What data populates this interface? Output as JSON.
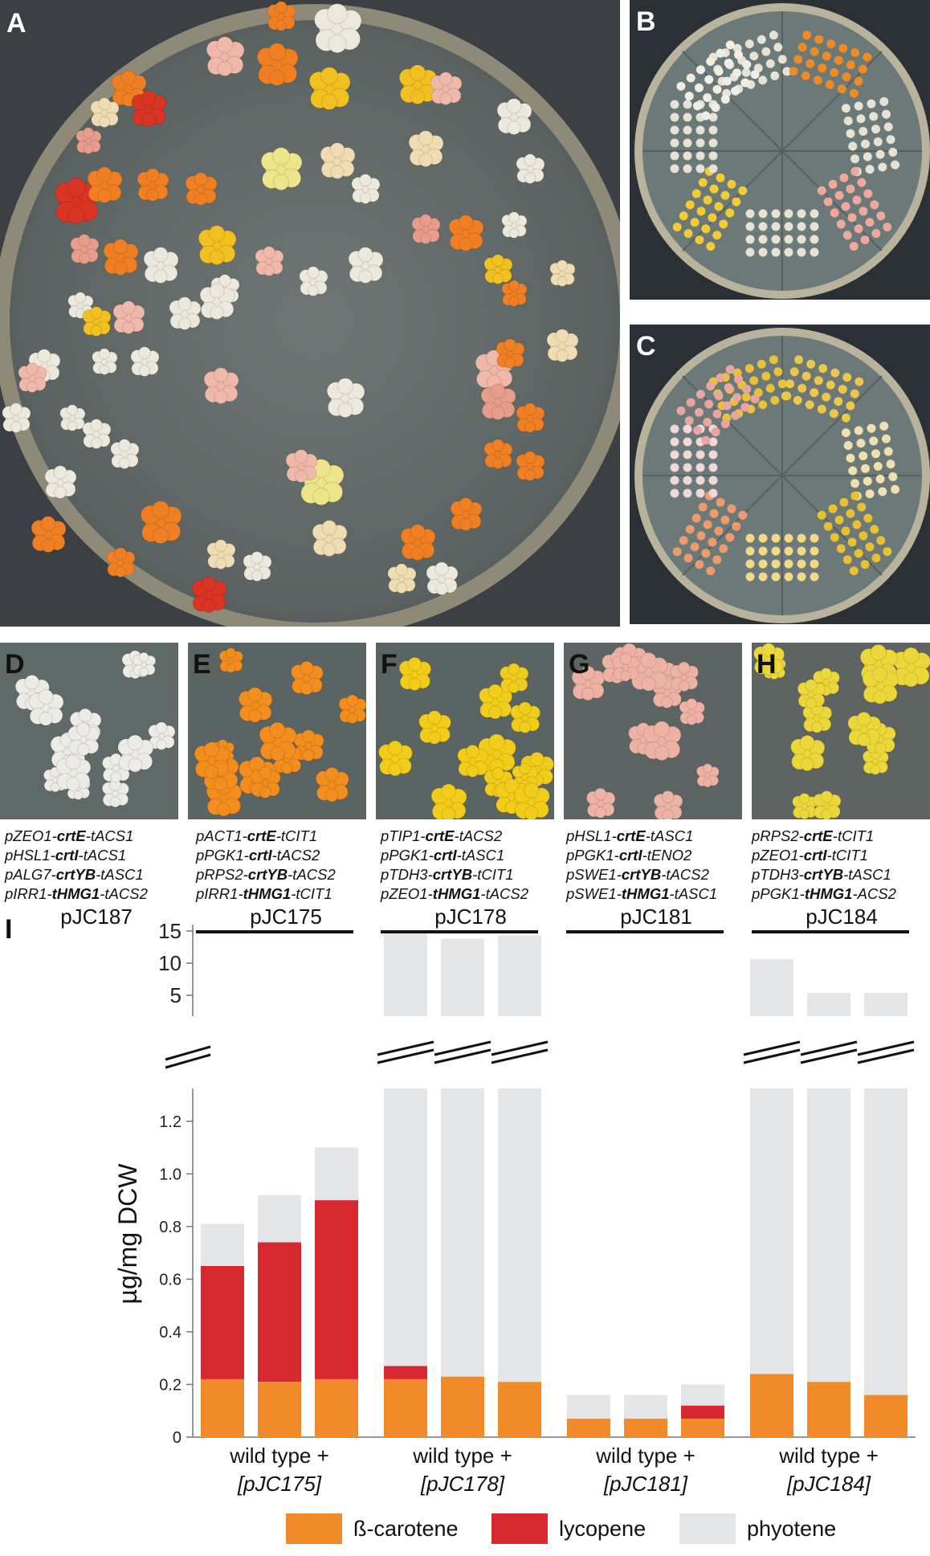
{
  "panels": {
    "A": "A",
    "B": "B",
    "C": "C",
    "D": "D",
    "E": "E",
    "F": "F",
    "G": "G",
    "H": "H",
    "I": "I"
  },
  "constructs": [
    {
      "letter": "D",
      "name": "pJC187",
      "underlined": false,
      "lines": [
        {
          "pre": "pZEO1-",
          "gene": "crtE",
          "post": "-tACS1"
        },
        {
          "pre": "pHSL1-",
          "gene": "crtI",
          "post": "-tACS1"
        },
        {
          "pre": "pALG7-",
          "gene": "crtYB",
          "post": "-tASC1"
        },
        {
          "pre": "pIRR1-",
          "gene": "tHMG1",
          "post": "-tACS2"
        }
      ]
    },
    {
      "letter": "E",
      "name": "pJC175",
      "underlined": true,
      "lines": [
        {
          "pre": "pACT1-",
          "gene": "crtE",
          "post": "-tCIT1"
        },
        {
          "pre": "pPGK1-",
          "gene": "crtI",
          "post": "-tACS2"
        },
        {
          "pre": "pRPS2-",
          "gene": "crtYB",
          "post": "-tACS2"
        },
        {
          "pre": "pIRR1-",
          "gene": "tHMG1",
          "post": "-tCIT1"
        }
      ]
    },
    {
      "letter": "F",
      "name": "pJC178",
      "underlined": true,
      "lines": [
        {
          "pre": "pTIP1-",
          "gene": "crtE",
          "post": "-tACS2"
        },
        {
          "pre": "pPGK1-",
          "gene": "crtI",
          "post": "-tASC1"
        },
        {
          "pre": "pTDH3-",
          "gene": "crtYB",
          "post": "-tCIT1"
        },
        {
          "pre": "pZEO1-",
          "gene": "tHMG1",
          "post": "-tACS2"
        }
      ]
    },
    {
      "letter": "G",
      "name": "pJC181",
      "underlined": true,
      "lines": [
        {
          "pre": "pHSL1-",
          "gene": "crtE",
          "post": "-tASC1"
        },
        {
          "pre": "pPGK1-",
          "gene": "crtI",
          "post": "-tENO2"
        },
        {
          "pre": "pSWE1-",
          "gene": "crtYB",
          "post": "-tACS2"
        },
        {
          "pre": "pSWE1-",
          "gene": "tHMG1",
          "post": "-tASC1"
        }
      ]
    },
    {
      "letter": "H",
      "name": "pJC184",
      "underlined": true,
      "lines": [
        {
          "pre": "pRPS2-",
          "gene": "crtE",
          "post": "-tCIT1"
        },
        {
          "pre": "pZEO1-",
          "gene": "crtI",
          "post": "-tCIT1"
        },
        {
          "pre": "pTDH3-",
          "gene": "crtYB",
          "post": "-tASC1"
        },
        {
          "pre": "pPGK1-",
          "gene": "tHMG1",
          "post": "-ACS2"
        }
      ]
    }
  ],
  "colors": {
    "beta_carotene": "#f18a2b",
    "lycopene": "#d7282f",
    "phytoene": "#e4e5e7",
    "plate_agar": "#5c6462"
  },
  "chart_data": {
    "type": "bar",
    "stacked": true,
    "ylabel": "µg/mg DCW",
    "broken_axis": true,
    "y_ticks_lower": [
      "0",
      "0.2",
      "0.4",
      "0.6",
      "0.8",
      "1.0",
      "1.2"
    ],
    "y_ticks_upper": [
      "5",
      "10",
      "15"
    ],
    "ylim_lower": [
      0,
      1.3
    ],
    "ylim_upper": [
      3,
      15
    ],
    "groups": [
      {
        "label": "wild type +",
        "plasmid": "[pJC175]"
      },
      {
        "label": "wild type +",
        "plasmid": "[pJC178]"
      },
      {
        "label": "wild type +",
        "plasmid": "[pJC181]"
      },
      {
        "label": "wild type +",
        "plasmid": "[pJC184]"
      }
    ],
    "series": [
      {
        "name": "ß-carotene",
        "values": [
          0.22,
          0.21,
          0.22,
          0.22,
          0.23,
          0.21,
          0.07,
          0.07,
          0.07,
          0.24,
          0.21,
          0.16
        ]
      },
      {
        "name": "lycopene",
        "values": [
          0.43,
          0.53,
          0.68,
          0.05,
          0,
          0,
          0,
          0,
          0.05,
          0,
          0,
          0
        ]
      },
      {
        "name": "phyotene",
        "values": [
          0.16,
          0.18,
          0.2,
          14.3,
          13.6,
          14.1,
          0.09,
          0.09,
          0.08,
          10.4,
          5.2,
          5.2
        ]
      }
    ],
    "totals": [
      0.81,
      0.92,
      1.1,
      14.6,
      13.8,
      14.3,
      0.16,
      0.16,
      0.2,
      10.6,
      5.4,
      5.4
    ]
  }
}
